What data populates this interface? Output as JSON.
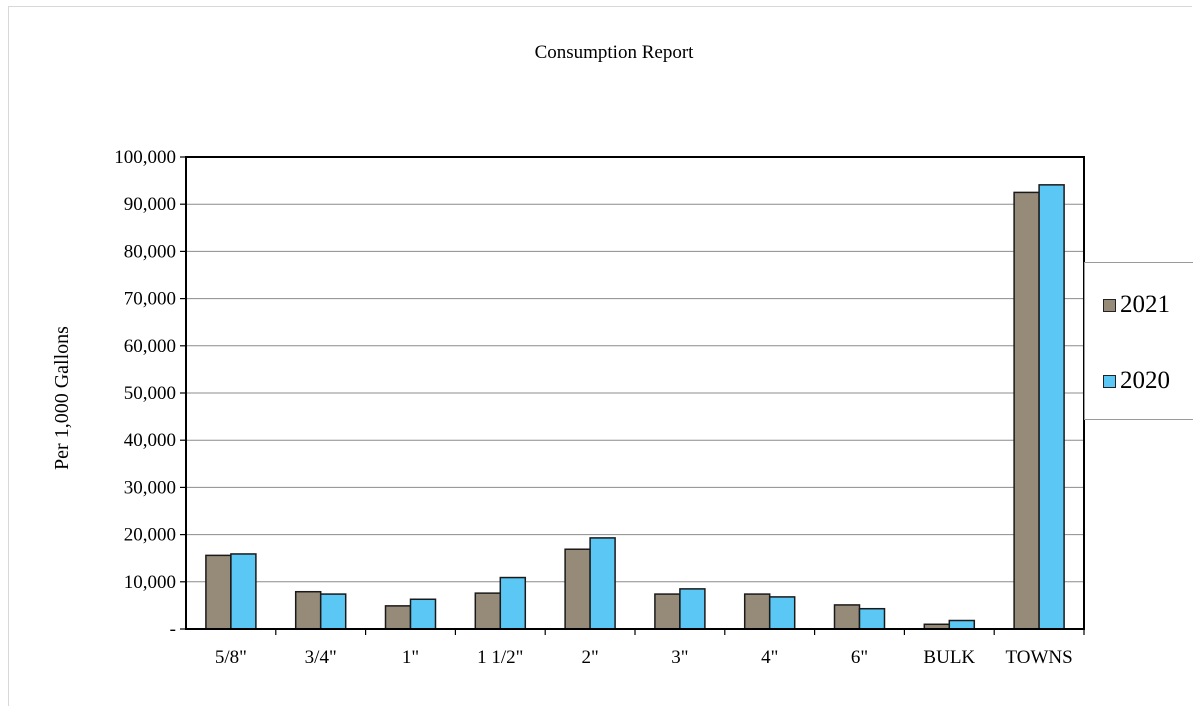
{
  "chart_data": {
    "type": "bar",
    "title": "Consumption Report",
    "xlabel": "",
    "ylabel": "Per 1,000 Gallons",
    "categories": [
      "5/8\"",
      "3/4\"",
      "1\"",
      "1 1/2\"",
      "2\"",
      "3\"",
      "4\"",
      "6\"",
      "BULK",
      "TOWNS"
    ],
    "series": [
      {
        "name": "2021",
        "color": "#958b78",
        "values": [
          15600,
          7900,
          4900,
          7600,
          16900,
          7400,
          7400,
          5100,
          1000,
          92500
        ]
      },
      {
        "name": "2020",
        "color": "#5bc7f5",
        "values": [
          15900,
          7400,
          6300,
          10900,
          19300,
          8500,
          6800,
          4300,
          1800,
          94100
        ]
      }
    ],
    "ylim": [
      0,
      100000
    ],
    "yticks": [
      0,
      10000,
      20000,
      30000,
      40000,
      50000,
      60000,
      70000,
      80000,
      90000,
      100000
    ],
    "ytick_labels": [
      "-",
      "10,000",
      "20,000",
      "30,000",
      "40,000",
      "50,000",
      "60,000",
      "70,000",
      "80,000",
      "90,000",
      "100,000"
    ],
    "grid": true,
    "legend_position": "right"
  }
}
